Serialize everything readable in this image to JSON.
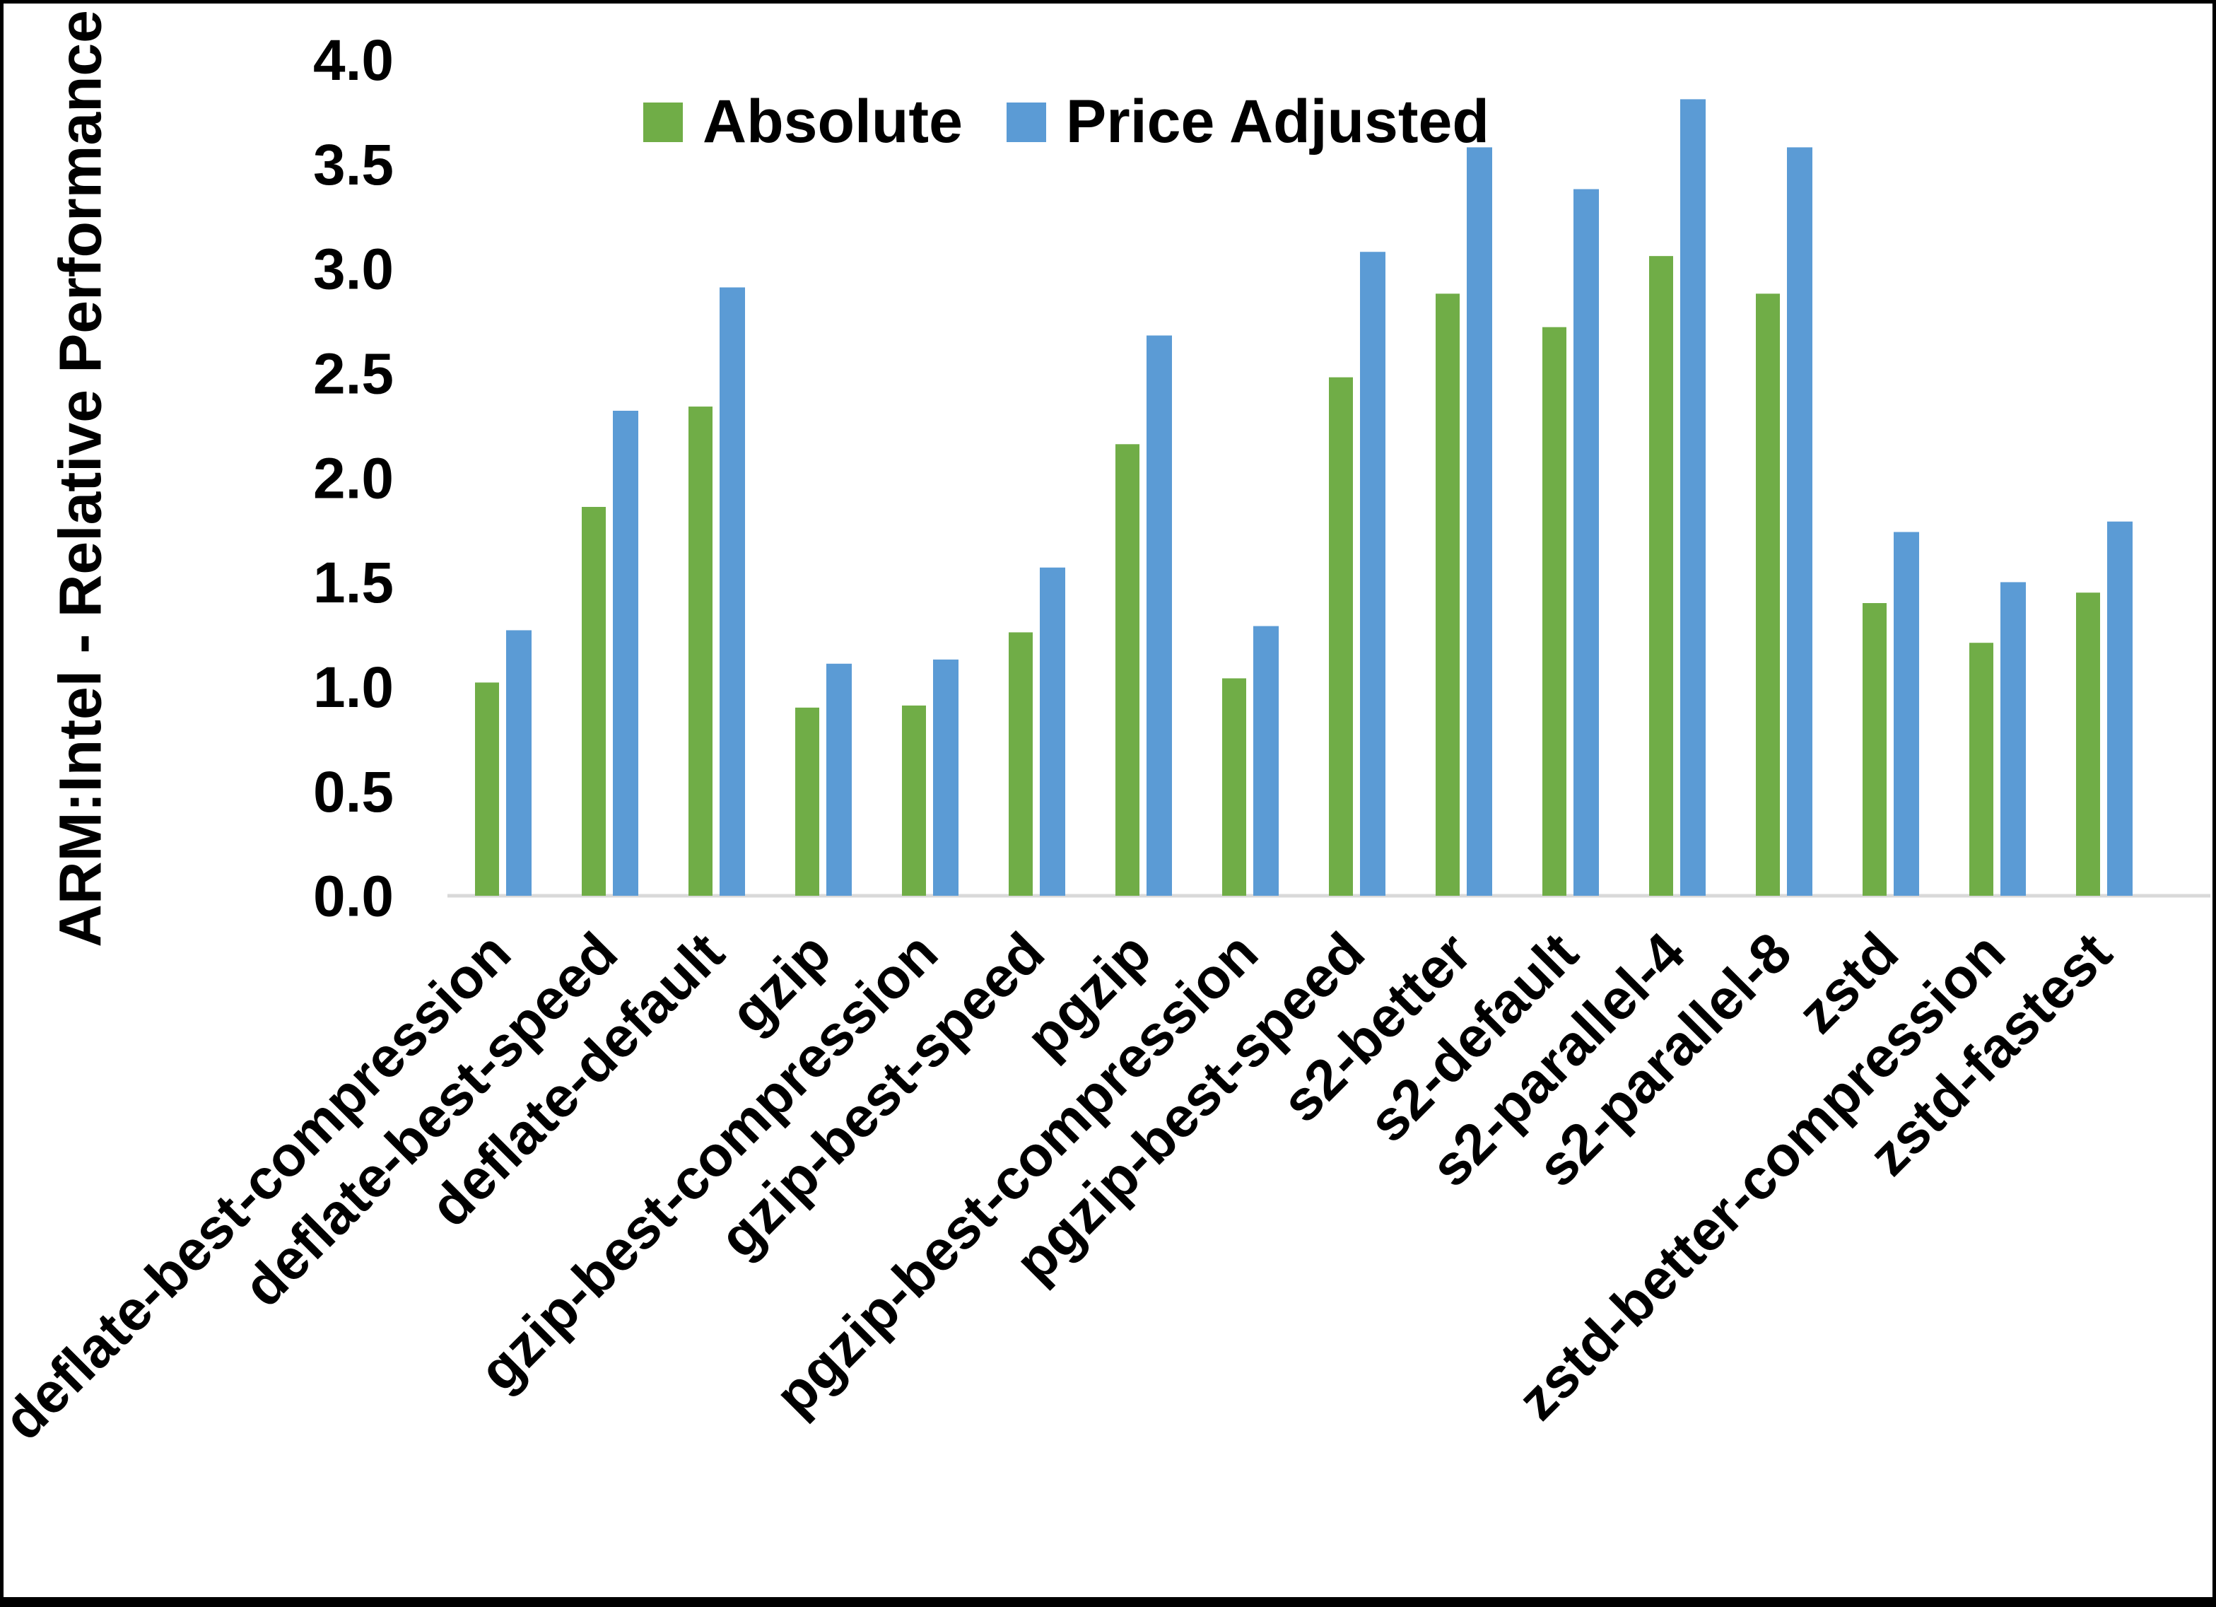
{
  "figure": {
    "y_axis_title": "ARM:Intel - Relative Performance",
    "legend": [
      {
        "label": "Absolute",
        "color": "#70AD47"
      },
      {
        "label": "Price Adjusted",
        "color": "#5B9BD5"
      }
    ]
  },
  "chart_data": {
    "type": "bar",
    "title": "",
    "xlabel": "",
    "ylabel": "ARM:Intel - Relative Performance",
    "ylim": [
      0.0,
      4.0
    ],
    "y_ticks": [
      0.0,
      0.5,
      1.0,
      1.5,
      2.0,
      2.5,
      3.0,
      3.5,
      4.0
    ],
    "grid": false,
    "legend_position": "top-center",
    "categories": [
      "deflate-best-compression",
      "deflate-best-speed",
      "deflate-default",
      "gzip",
      "gzip-best-compression",
      "gzip-best-speed",
      "pgzip",
      "pgzip-best-compression",
      "pgzip-best-speed",
      "s2-better",
      "s2-default",
      "s2-parallel-4",
      "s2-parallel-8",
      "zstd",
      "zstd-better-compression",
      "zstd-fastest"
    ],
    "series": [
      {
        "name": "Absolute",
        "color": "#70AD47",
        "values": [
          1.02,
          1.86,
          2.34,
          0.9,
          0.91,
          1.26,
          2.16,
          1.04,
          2.48,
          2.88,
          2.72,
          3.06,
          2.88,
          1.4,
          1.21,
          1.45
        ]
      },
      {
        "name": "Price Adjusted",
        "color": "#5B9BD5",
        "values": [
          1.27,
          2.32,
          2.91,
          1.11,
          1.13,
          1.57,
          2.68,
          1.29,
          3.08,
          3.58,
          3.38,
          3.81,
          3.58,
          1.74,
          1.5,
          1.79
        ]
      }
    ]
  },
  "colors": {
    "axis_line": "#D9D9D9",
    "text": "#000000",
    "background": "#FFFFFF",
    "frame": "#000000"
  }
}
